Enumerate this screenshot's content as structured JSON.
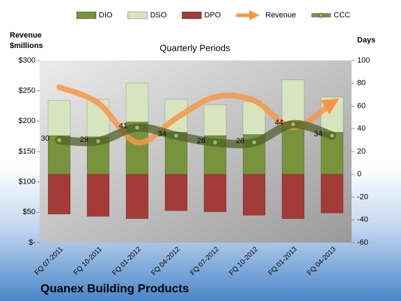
{
  "chart_data": {
    "type": "bar",
    "title": "Quarterly Periods",
    "y_label": "Revenue $millions",
    "y2_label": "Days",
    "footer": "Quanex Building Products",
    "legend": "top",
    "categories": [
      "FQ 07-2011",
      "FQ 10-2011",
      "FQ 01-2012",
      "FQ 04-2012",
      "FQ 07-2012",
      "FQ 10-2012",
      "FQ 01-2013",
      "FQ 04-2013"
    ],
    "series": [
      {
        "name": "DIO",
        "type": "bar",
        "axis": "y2",
        "color": "#77933c",
        "values": [
          34,
          33,
          46,
          37,
          34,
          35,
          46,
          37
        ]
      },
      {
        "name": "DSO",
        "type": "bar",
        "axis": "y2",
        "color": "#d7e4bd",
        "values": [
          31,
          33,
          34,
          29,
          27,
          29,
          37,
          31
        ]
      },
      {
        "name": "DPO",
        "type": "bar",
        "axis": "y2",
        "color": "#a33b38",
        "values": [
          -35,
          -37,
          -39,
          -32,
          -33,
          -36,
          -39,
          -34
        ]
      },
      {
        "name": "Revenue",
        "type": "line",
        "color": "#f79646",
        "values": [
          256,
          230,
          165,
          205,
          240,
          234,
          190,
          230
        ]
      },
      {
        "name": "CCC",
        "type": "line",
        "axis": "y2",
        "color": "#4f6228",
        "values": [
          30,
          29,
          41,
          34,
          28,
          28,
          44,
          34
        ]
      }
    ],
    "ylim": [
      0,
      300
    ],
    "yticks": [
      {
        "value": 0,
        "label": "$-"
      },
      {
        "value": 50,
        "label": "$50"
      },
      {
        "value": 100,
        "label": "$100"
      },
      {
        "value": 150,
        "label": "$150"
      },
      {
        "value": 200,
        "label": "$200"
      },
      {
        "value": 250,
        "label": "$250"
      },
      {
        "value": 300,
        "label": "$300"
      }
    ],
    "y2lim": [
      -60,
      100
    ],
    "y2ticks": [
      -60,
      -40,
      -20,
      0,
      20,
      40,
      60,
      80,
      100
    ]
  }
}
